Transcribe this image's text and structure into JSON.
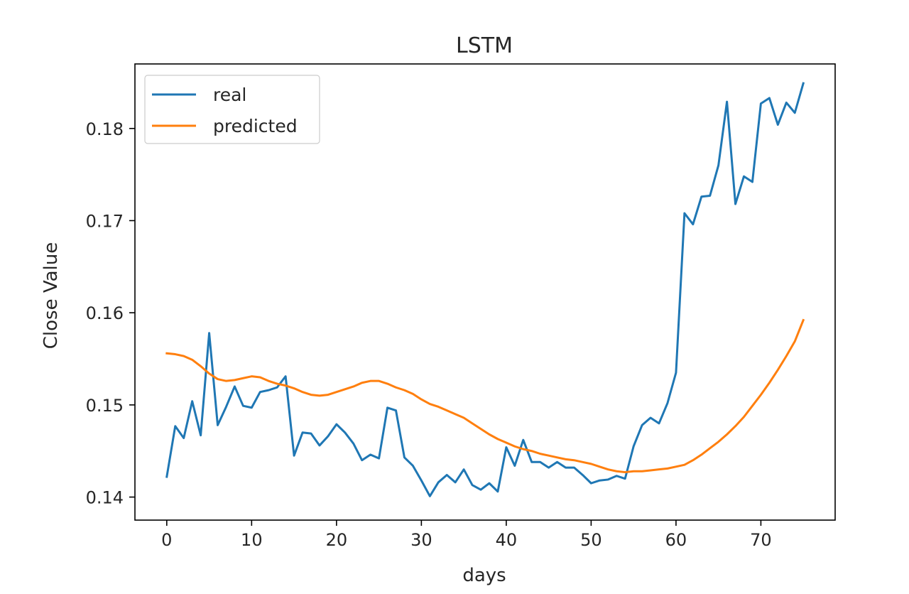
{
  "chart_data": {
    "type": "line",
    "title": "LSTM",
    "xlabel": "days",
    "ylabel": "Close Value",
    "xlim": [
      -3.75,
      78.75
    ],
    "ylim": [
      0.1375,
      0.187
    ],
    "xticks": [
      0,
      10,
      20,
      30,
      40,
      50,
      60,
      70
    ],
    "yticks": [
      0.14,
      0.15,
      0.16,
      0.17,
      0.18
    ],
    "ytick_labels": [
      "0.14",
      "0.15",
      "0.16",
      "0.17",
      "0.18"
    ],
    "grid": false,
    "legend_position": "top-left",
    "x": [
      0,
      1,
      2,
      3,
      4,
      5,
      6,
      7,
      8,
      9,
      10,
      11,
      12,
      13,
      14,
      15,
      16,
      17,
      18,
      19,
      20,
      21,
      22,
      23,
      24,
      25,
      26,
      27,
      28,
      29,
      30,
      31,
      32,
      33,
      34,
      35,
      36,
      37,
      38,
      39,
      40,
      41,
      42,
      43,
      44,
      45,
      46,
      47,
      48,
      49,
      50,
      51,
      52,
      53,
      54,
      55,
      56,
      57,
      58,
      59,
      60,
      61,
      62,
      63,
      64,
      65,
      66,
      67,
      68,
      69,
      70,
      71,
      72,
      73,
      74,
      75
    ],
    "series": [
      {
        "name": "real",
        "color": "#1f77b4",
        "values": [
          0.1422,
          0.1477,
          0.1464,
          0.1504,
          0.1467,
          0.1578,
          0.1478,
          0.1498,
          0.152,
          0.1499,
          0.1497,
          0.1514,
          0.1516,
          0.1519,
          0.1531,
          0.1445,
          0.147,
          0.1469,
          0.1456,
          0.1466,
          0.1479,
          0.147,
          0.1458,
          0.144,
          0.1446,
          0.1442,
          0.1497,
          0.1494,
          0.1443,
          0.1434,
          0.1418,
          0.1401,
          0.1416,
          0.1424,
          0.1416,
          0.143,
          0.1413,
          0.1408,
          0.1415,
          0.1406,
          0.1454,
          0.1434,
          0.1462,
          0.1438,
          0.1438,
          0.1432,
          0.1438,
          0.1432,
          0.1432,
          0.1424,
          0.1415,
          0.1418,
          0.1419,
          0.1423,
          0.142,
          0.1455,
          0.1478,
          0.1486,
          0.148,
          0.1502,
          0.1535,
          0.1708,
          0.1696,
          0.1726,
          0.1727,
          0.176,
          0.1829,
          0.1718,
          0.1748,
          0.1742,
          0.1827,
          0.1833,
          0.1804,
          0.1828,
          0.1817,
          0.1849
        ]
      },
      {
        "name": "predicted",
        "color": "#ff7f0e",
        "values": [
          0.1556,
          0.1555,
          0.1553,
          0.1549,
          0.1542,
          0.1534,
          0.1528,
          0.1526,
          0.1527,
          0.1529,
          0.1531,
          0.153,
          0.1526,
          0.1523,
          0.1521,
          0.1518,
          0.1514,
          0.1511,
          0.151,
          0.1511,
          0.1514,
          0.1517,
          0.152,
          0.1524,
          0.1526,
          0.1526,
          0.1523,
          0.1519,
          0.1516,
          0.1512,
          0.1506,
          0.1501,
          0.1498,
          0.1494,
          0.149,
          0.1486,
          0.148,
          0.1474,
          0.1468,
          0.1463,
          0.1459,
          0.1455,
          0.1452,
          0.145,
          0.1447,
          0.1445,
          0.1443,
          0.1441,
          0.144,
          0.1438,
          0.1436,
          0.1433,
          0.143,
          0.1428,
          0.1427,
          0.1428,
          0.1428,
          0.1429,
          0.143,
          0.1431,
          0.1433,
          0.1435,
          0.144,
          0.1446,
          0.1453,
          0.146,
          0.1468,
          0.1477,
          0.1487,
          0.1499,
          0.1511,
          0.1524,
          0.1538,
          0.1553,
          0.1569,
          0.1592
        ]
      }
    ]
  }
}
